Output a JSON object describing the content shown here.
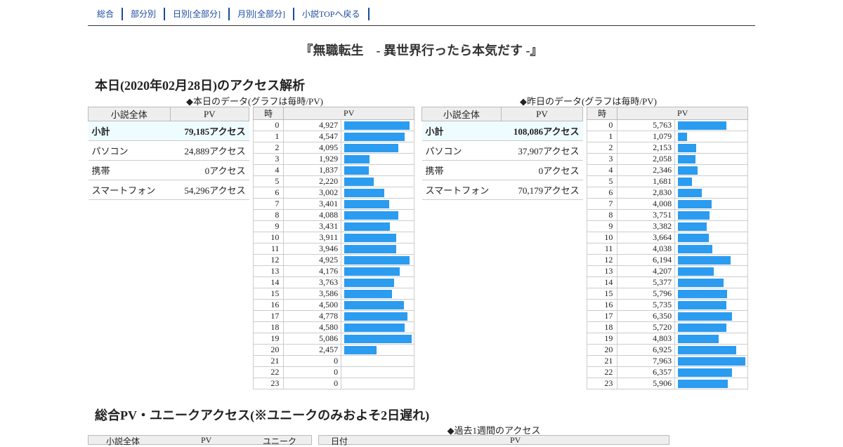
{
  "nav": [
    "総合",
    "部分別",
    "日別[全部分]",
    "月別[全部分]",
    "小説TOPへ戻る"
  ],
  "novel_title": "『無職転生　- 異世界行ったら本気だす -』",
  "today_section_title": "本日(2020年02月28日)のアクセス解析",
  "today_caption": "◆本日のデータ(グラフは毎時/PV)",
  "yesterday_caption": "◆昨日のデータ(グラフは毎時/PV)",
  "summary_headers": [
    "小説全体",
    "PV"
  ],
  "hourly_headers": [
    "時",
    "PV"
  ],
  "today_summary": [
    {
      "label": "小計",
      "value": "79,185アクセス"
    },
    {
      "label": "パソコン",
      "value": "24,889アクセス"
    },
    {
      "label": "携帯",
      "value": "0アクセス"
    },
    {
      "label": "スマートフォン",
      "value": "54,296アクセス"
    }
  ],
  "yesterday_summary": [
    {
      "label": "小計",
      "value": "108,086アクセス"
    },
    {
      "label": "パソコン",
      "value": "37,907アクセス"
    },
    {
      "label": "携帯",
      "value": "0アクセス"
    },
    {
      "label": "スマートフォン",
      "value": "70,179アクセス"
    }
  ],
  "today_hourly": [
    "4,927",
    "4,547",
    "4,095",
    "1,929",
    "1,837",
    "2,220",
    "3,002",
    "3,401",
    "4,088",
    "3,431",
    "3,911",
    "3,946",
    "4,925",
    "4,176",
    "3,763",
    "3,586",
    "4,500",
    "4,778",
    "4,580",
    "5,086",
    "2,457",
    "0",
    "0",
    "0"
  ],
  "yesterday_hourly": [
    "5,763",
    "1,079",
    "2,153",
    "2,058",
    "2,346",
    "1,681",
    "2,830",
    "4,008",
    "3,751",
    "3,382",
    "3,664",
    "4,038",
    "6,194",
    "4,207",
    "5,377",
    "5,796",
    "5,735",
    "6,350",
    "5,720",
    "4,803",
    "6,925",
    "7,963",
    "6,357",
    "5,906"
  ],
  "total_section_title": "総合PV・ユニークアクセス(※ユニークのみおよそ2日遅れ)",
  "week_caption": "◆過去1週間のアクセス",
  "total_headers": [
    "小説全体",
    "PV",
    "ユニーク"
  ],
  "week_headers": [
    "日付",
    "PV"
  ],
  "colors": {
    "bar": "#2b9cf0",
    "subtotal_bg": "#eefcff",
    "header_bg": "#eeeeee",
    "nav_link": "#1a4aa0"
  }
}
